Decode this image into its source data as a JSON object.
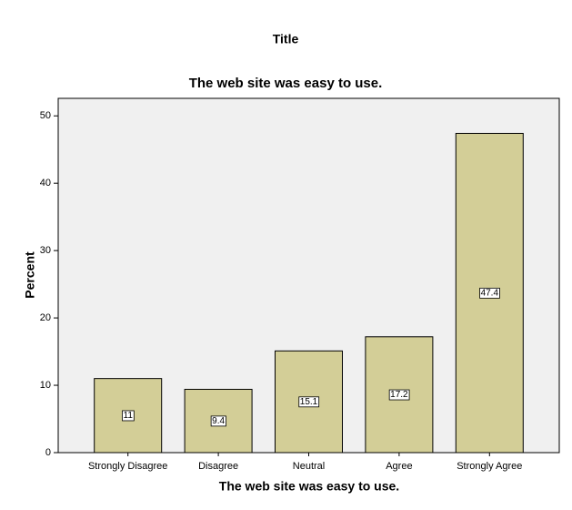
{
  "chart_data": {
    "type": "bar",
    "title": "Title",
    "subtitle": "The web site was easy to use.",
    "x_label": "The web site was easy to use.",
    "y_label": "Percent",
    "categories": [
      "Strongly Disagree",
      "Disagree",
      "Neutral",
      "Agree",
      "Strongly Agree"
    ],
    "values": [
      11,
      9.4,
      15.1,
      17.2,
      47.4
    ],
    "color": "#d3ce97",
    "ylim": [
      0,
      52.6
    ],
    "yticks": [
      0,
      10,
      20,
      30,
      40,
      50
    ]
  }
}
